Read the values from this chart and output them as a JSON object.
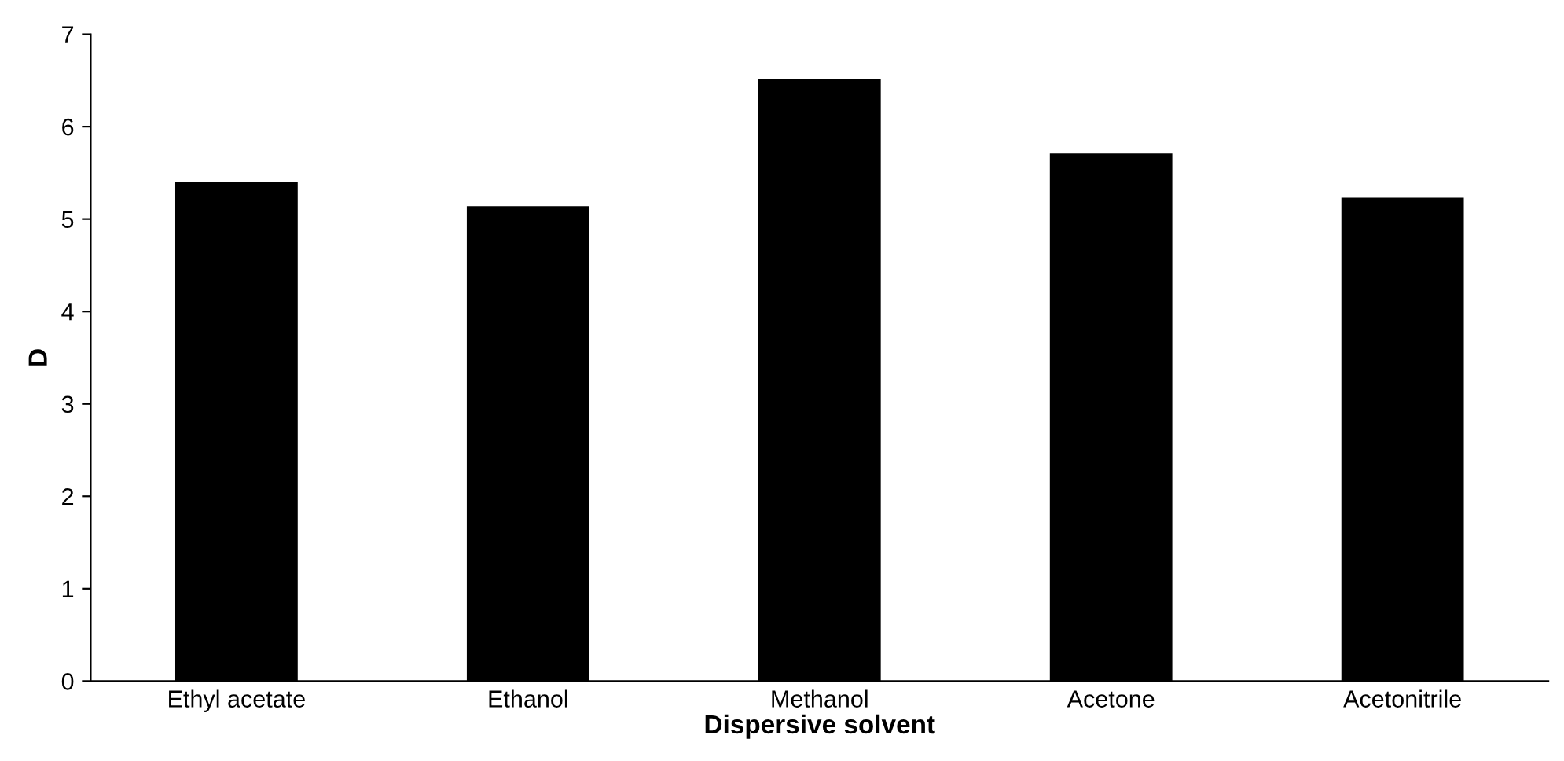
{
  "chart_data": {
    "type": "bar",
    "xlabel": "Dispersive solvent",
    "ylabel": "D",
    "categories": [
      "Ethyl acetate",
      "Ethanol",
      "Methanol",
      "Acetone",
      "Acetonitrile"
    ],
    "values": [
      5.4,
      5.14,
      6.52,
      5.71,
      5.23
    ],
    "color": "#000000",
    "ylim": [
      0,
      7
    ],
    "yticks": [
      0,
      1,
      2,
      3,
      4,
      5,
      6,
      7
    ],
    "grid": false
  }
}
